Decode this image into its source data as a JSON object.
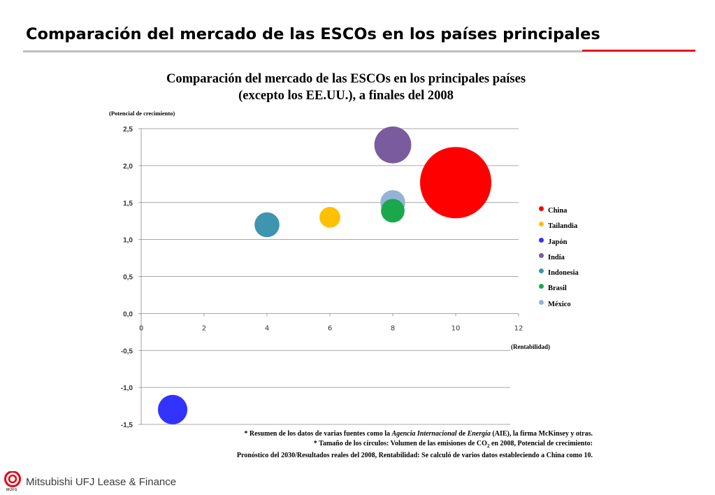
{
  "slide": {
    "title": "Comparación del mercado de las ESCOs en los países principales",
    "accent_color": "#e8141e"
  },
  "chart_data": {
    "type": "scatter",
    "variant": "bubble",
    "title_lines": [
      "Comparación del mercado de las ESCOs en los principales países",
      "(excepto los EE.UU.), a finales del 2008"
    ],
    "xlabel": "(Rentabilidad)",
    "ylabel": "(Potencial de crecimiento)",
    "xlim": [
      0,
      12
    ],
    "ylim": [
      -1.5,
      2.5
    ],
    "x_ticks": [
      "0",
      "2",
      "4",
      "6",
      "8",
      "10",
      "12"
    ],
    "y_ticks": [
      "2,5",
      "2,0",
      "1,5",
      "1,0",
      "0,5",
      "0,0",
      "-0,5",
      "-1,0",
      "-1,5"
    ],
    "grid": "horizontal",
    "legend_position": "right",
    "series": [
      {
        "name": "China",
        "x": 10,
        "y": 1.77,
        "size": 8.2,
        "color": "#ff0000"
      },
      {
        "name": "Tailandia",
        "x": 6,
        "y": 1.3,
        "size": 0.7,
        "color": "#ffc000"
      },
      {
        "name": "Japón",
        "x": 1,
        "y": -1.3,
        "size": 1.4,
        "color": "#3333ff"
      },
      {
        "name": "India",
        "x": 8,
        "y": 2.28,
        "size": 2.2,
        "color": "#7a5c9e"
      },
      {
        "name": "Indonesia",
        "x": 4,
        "y": 1.2,
        "size": 1.0,
        "color": "#3d95b0"
      },
      {
        "name": "Brasil",
        "x": 8,
        "y": 1.39,
        "size": 0.9,
        "color": "#1aa84b"
      },
      {
        "name": "México",
        "x": 8,
        "y": 1.5,
        "size": 1.0,
        "color": "#95b3d7"
      }
    ]
  },
  "footnote": {
    "line1_a": "* Resumen de los datos de varias fuentes como la ",
    "line1_b": "Agencia Internacional",
    "line1_c": " de ",
    "line1_d": "Energía",
    "line1_e": " (AIE), la firma McKinsey y otras.",
    "line2_a": "* Tamaño de los círculos: Volumen de las emisiones de CO",
    "line2_sub": "2",
    "line2_b": " en 2008, Potencial de crecimiento:",
    "line3": "Pronóstico del 2030/Resultados reales del 2008, Rentabilidad: Se calculó de varios datos estableciendo a China como 10."
  },
  "logo": {
    "name": "Mitsubishi UFJ Lease & Finance",
    "sub": "MUFG",
    "mark_color": "#e60012"
  }
}
